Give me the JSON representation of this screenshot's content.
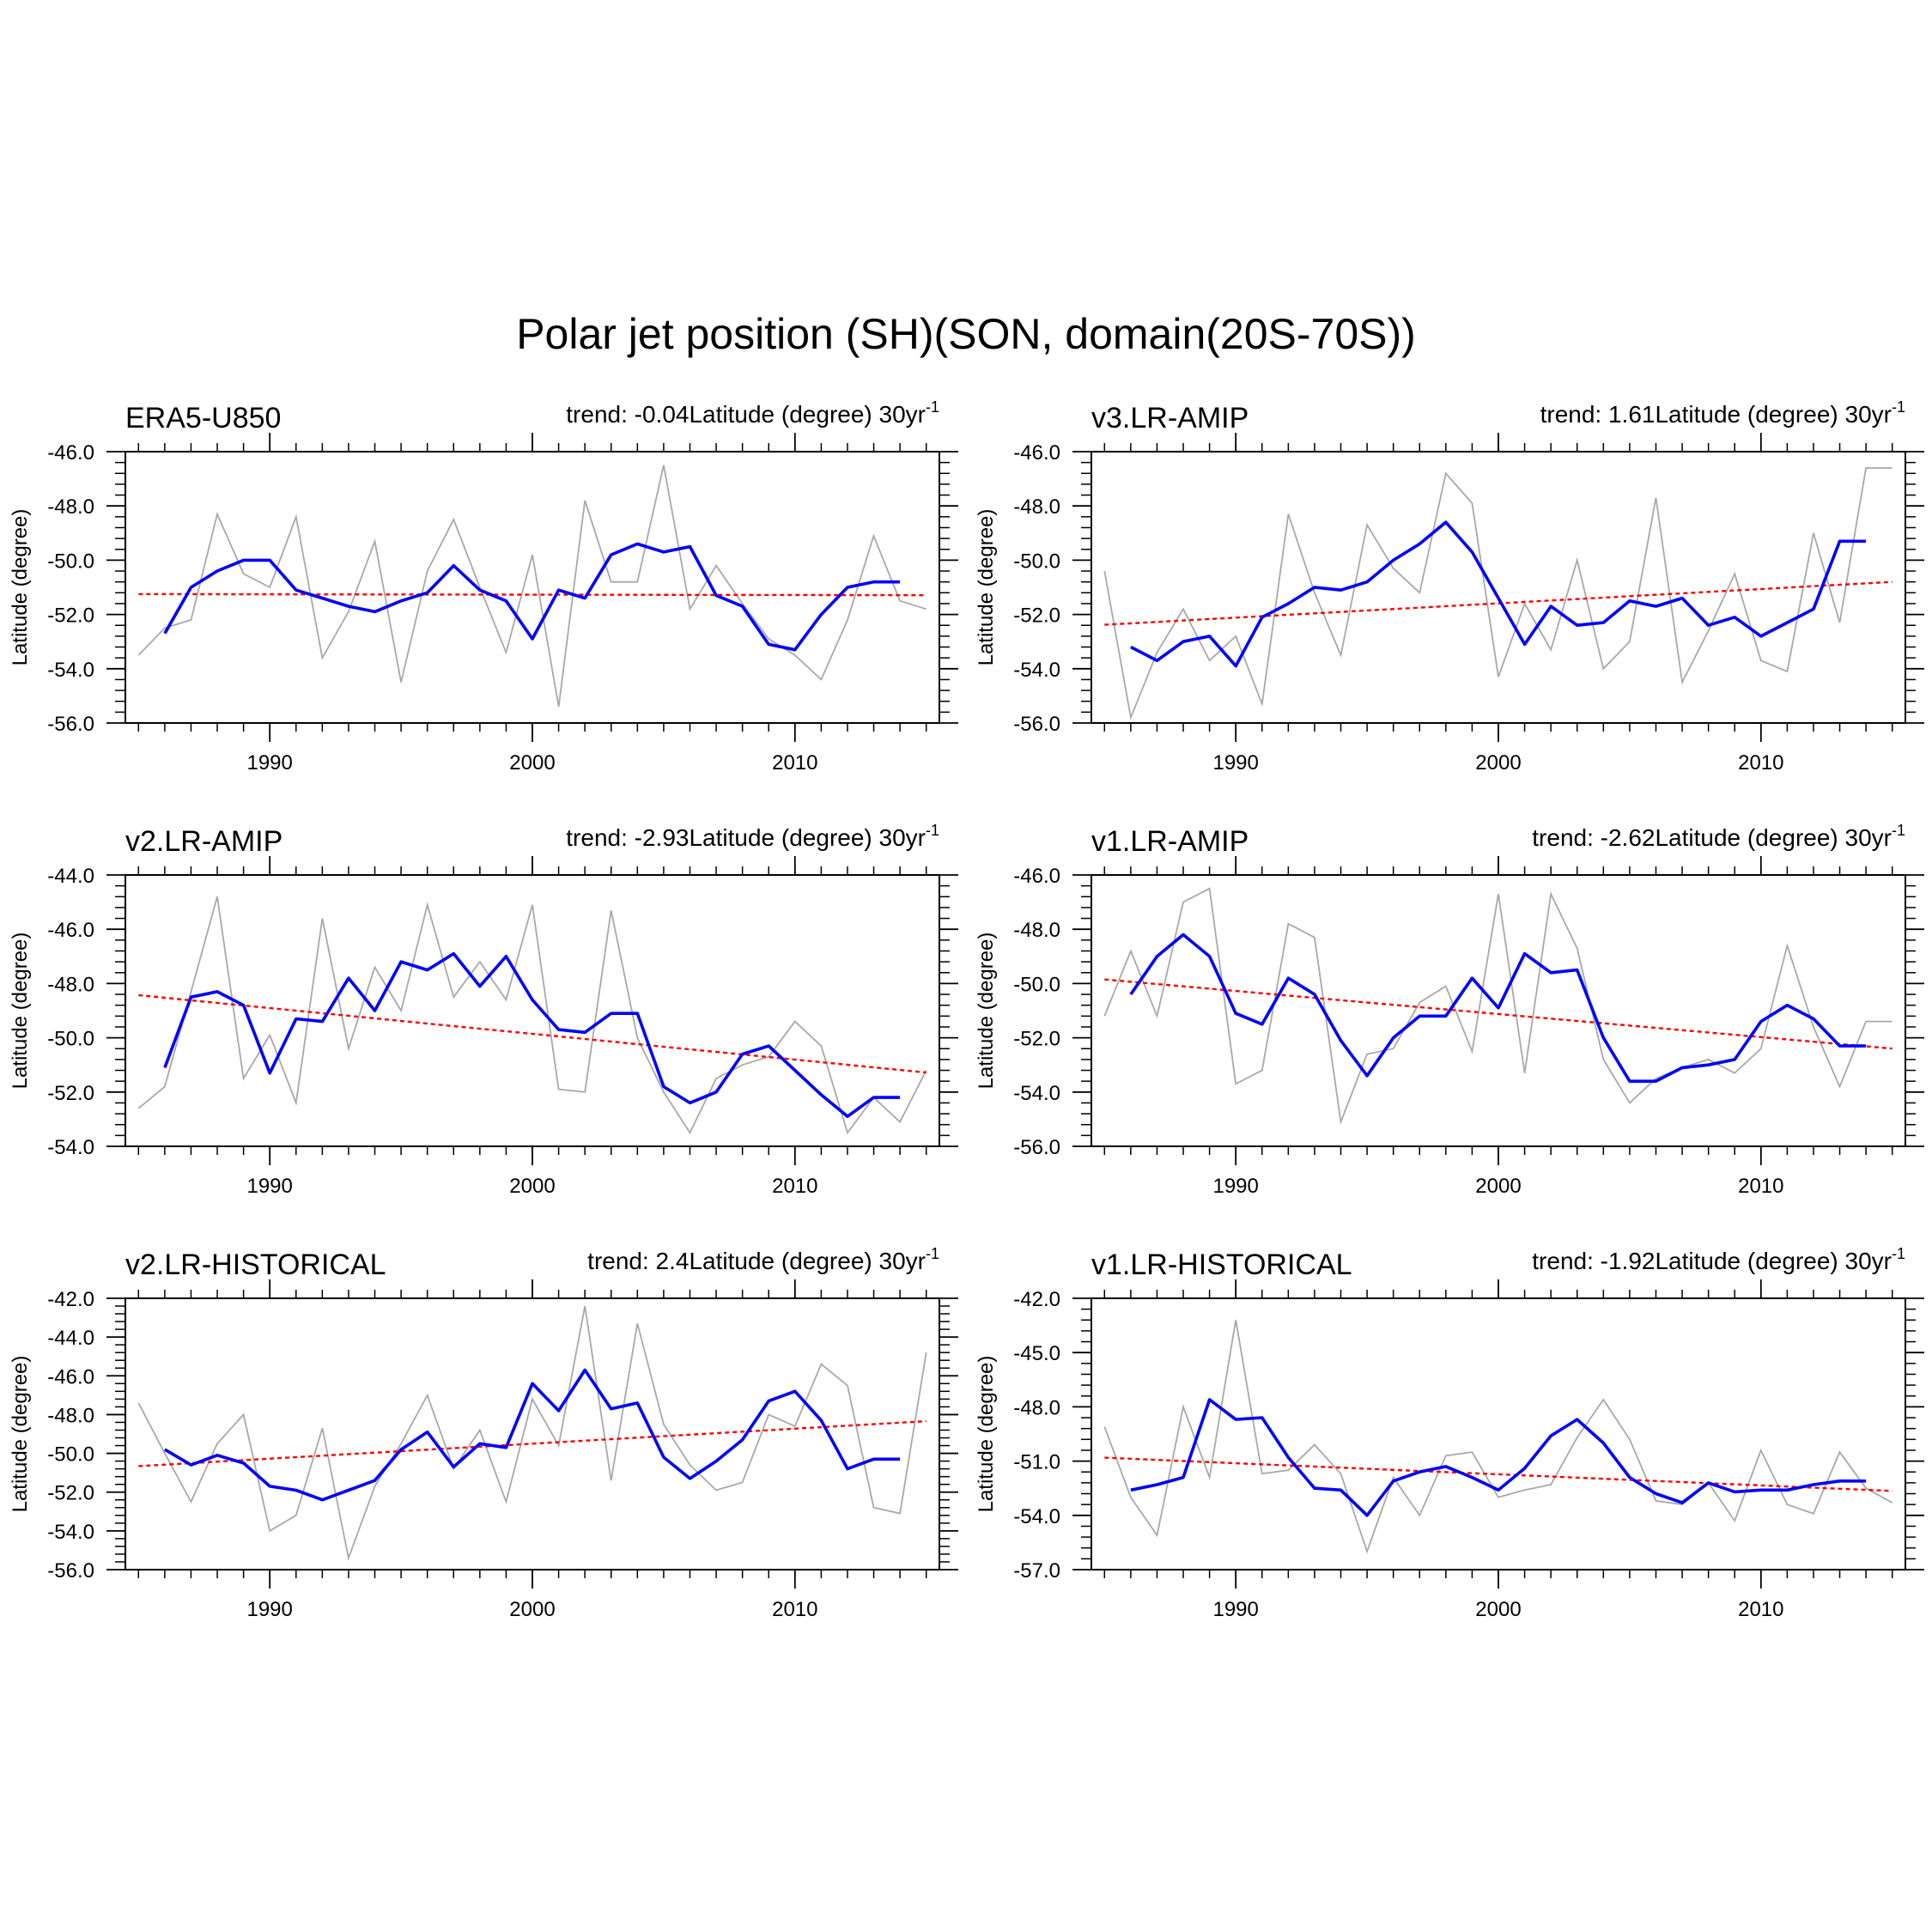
{
  "figure": {
    "title": "Polar jet position (SH)(SON, domain(20S-70S))"
  },
  "chart_data": [
    {
      "type": "line",
      "title": "ERA5-U850",
      "trend_text": "trend: -0.04Latitude (degree) 30yr",
      "trend_superscript": "-1",
      "ylabel": "Latitude (degree)",
      "xlim": [
        1984.5,
        2015.5
      ],
      "ylim": [
        -56.0,
        -46.0
      ],
      "yticks": [
        -56.0,
        -54.0,
        -52.0,
        -50.0,
        -48.0,
        -46.0
      ],
      "ytick_labels": [
        "-56.0",
        "-54.0",
        "-52.0",
        "-50.0",
        "-48.0",
        "-46.0"
      ],
      "xticks": [
        1990,
        2000,
        2010
      ],
      "xtick_labels": [
        "1990",
        "2000",
        "2010"
      ],
      "x_raw": [
        1985,
        1986,
        1987,
        1988,
        1989,
        1990,
        1991,
        1992,
        1993,
        1994,
        1995,
        1996,
        1997,
        1998,
        1999,
        2000,
        2001,
        2002,
        2003,
        2004,
        2005,
        2006,
        2007,
        2008,
        2009,
        2010,
        2011,
        2012,
        2013,
        2014,
        2015
      ],
      "raw": [
        -53.5,
        -52.5,
        -52.2,
        -48.3,
        -50.5,
        -51.0,
        -48.4,
        -53.6,
        -51.9,
        -49.3,
        -54.5,
        -50.4,
        -48.5,
        -51.0,
        -53.4,
        -49.8,
        -55.4,
        -47.8,
        -50.8,
        -50.8,
        -46.5,
        -51.8,
        -50.2,
        -51.6,
        -52.9,
        -53.5,
        -54.4,
        -52.2,
        -49.1,
        -51.5,
        -51.8
      ],
      "x_smooth": [
        1986,
        1987,
        1988,
        1989,
        1990,
        1991,
        1992,
        1993,
        1994,
        1995,
        1996,
        1997,
        1998,
        1999,
        2000,
        2001,
        2002,
        2003,
        2004,
        2005,
        2006,
        2007,
        2008,
        2009,
        2010,
        2011,
        2012,
        2013,
        2014
      ],
      "smooth": [
        -52.7,
        -51.0,
        -50.4,
        -50.0,
        -50.0,
        -51.1,
        -51.4,
        -51.7,
        -51.9,
        -51.5,
        -51.2,
        -50.2,
        -51.1,
        -51.5,
        -52.9,
        -51.1,
        -51.4,
        -49.8,
        -49.4,
        -49.7,
        -49.5,
        -51.3,
        -51.7,
        -53.1,
        -53.3,
        -52.0,
        -51.0,
        -50.8,
        -50.8
      ],
      "trend_line": [
        -51.25,
        -51.29
      ]
    },
    {
      "type": "line",
      "title": "v3.LR-AMIP",
      "trend_text": "trend: 1.61Latitude (degree) 30yr",
      "trend_superscript": "-1",
      "ylabel": "Latitude (degree)",
      "xlim": [
        1984.5,
        2015.5
      ],
      "ylim": [
        -56.0,
        -46.0
      ],
      "yticks": [
        -56.0,
        -54.0,
        -52.0,
        -50.0,
        -48.0,
        -46.0
      ],
      "ytick_labels": [
        "-56.0",
        "-54.0",
        "-52.0",
        "-50.0",
        "-48.0",
        "-46.0"
      ],
      "xticks": [
        1990,
        2000,
        2010
      ],
      "xtick_labels": [
        "1990",
        "2000",
        "2010"
      ],
      "x_raw": [
        1985,
        1986,
        1987,
        1988,
        1989,
        1990,
        1991,
        1992,
        1993,
        1994,
        1995,
        1996,
        1997,
        1998,
        1999,
        2000,
        2001,
        2002,
        2003,
        2004,
        2005,
        2006,
        2007,
        2008,
        2009,
        2010,
        2011,
        2012,
        2013,
        2014,
        2015
      ],
      "raw": [
        -50.4,
        -55.8,
        -53.4,
        -51.8,
        -53.7,
        -52.8,
        -55.3,
        -48.3,
        -51.2,
        -53.5,
        -48.7,
        -50.3,
        -51.2,
        -46.8,
        -47.9,
        -54.3,
        -51.6,
        -53.3,
        -50.0,
        -54.0,
        -53.0,
        -47.7,
        -54.5,
        -52.6,
        -50.5,
        -53.7,
        -54.1,
        -49.0,
        -52.3,
        -46.6,
        -46.6
      ],
      "x_smooth": [
        1986,
        1987,
        1988,
        1989,
        1990,
        1991,
        1992,
        1993,
        1994,
        1995,
        1996,
        1997,
        1998,
        1999,
        2000,
        2001,
        2002,
        2003,
        2004,
        2005,
        2006,
        2007,
        2008,
        2009,
        2010,
        2011,
        2012,
        2013,
        2014
      ],
      "smooth": [
        -53.2,
        -53.7,
        -53.0,
        -52.8,
        -53.9,
        -52.1,
        -51.6,
        -51.0,
        -51.1,
        -50.8,
        -50.0,
        -49.4,
        -48.6,
        -49.7,
        -51.4,
        -53.1,
        -51.7,
        -52.4,
        -52.3,
        -51.5,
        -51.7,
        -51.4,
        -52.4,
        -52.1,
        -52.8,
        -52.3,
        -51.8,
        -49.3,
        -49.3
      ],
      "trend_line": [
        -52.38,
        -50.8
      ]
    },
    {
      "type": "line",
      "title": "v2.LR-AMIP",
      "trend_text": "trend: -2.93Latitude (degree) 30yr",
      "trend_superscript": "-1",
      "ylabel": "Latitude (degree)",
      "xlim": [
        1984.5,
        2015.5
      ],
      "ylim": [
        -54.0,
        -44.0
      ],
      "yticks": [
        -54.0,
        -52.0,
        -50.0,
        -48.0,
        -46.0,
        -44.0
      ],
      "ytick_labels": [
        "-54.0",
        "-52.0",
        "-50.0",
        "-48.0",
        "-46.0",
        "-44.0"
      ],
      "xticks": [
        1990,
        2000,
        2010
      ],
      "xtick_labels": [
        "1990",
        "2000",
        "2010"
      ],
      "x_raw": [
        1985,
        1986,
        1987,
        1988,
        1989,
        1990,
        1991,
        1992,
        1993,
        1994,
        1995,
        1996,
        1997,
        1998,
        1999,
        2000,
        2001,
        2002,
        2003,
        2004,
        2005,
        2006,
        2007,
        2008,
        2009,
        2010,
        2011,
        2012,
        2013,
        2014,
        2015
      ],
      "raw": [
        -52.6,
        -51.8,
        -48.3,
        -44.8,
        -51.5,
        -49.9,
        -52.4,
        -45.6,
        -50.4,
        -47.4,
        -49.0,
        -45.1,
        -48.5,
        -47.2,
        -48.6,
        -45.1,
        -51.9,
        -52.0,
        -45.3,
        -50.0,
        -52.0,
        -53.5,
        -51.5,
        -51.0,
        -50.7,
        -49.4,
        -50.3,
        -53.5,
        -52.2,
        -53.1,
        -51.2
      ],
      "x_smooth": [
        1986,
        1987,
        1988,
        1989,
        1990,
        1991,
        1992,
        1993,
        1994,
        1995,
        1996,
        1997,
        1998,
        1999,
        2000,
        2001,
        2002,
        2003,
        2004,
        2005,
        2006,
        2007,
        2008,
        2009,
        2010,
        2011,
        2012,
        2013,
        2014
      ],
      "smooth": [
        -51.1,
        -48.5,
        -48.3,
        -48.8,
        -51.3,
        -49.3,
        -49.4,
        -47.8,
        -49.0,
        -47.2,
        -47.5,
        -46.9,
        -48.1,
        -47.0,
        -48.6,
        -49.7,
        -49.8,
        -49.1,
        -49.1,
        -51.8,
        -52.4,
        -52.0,
        -50.6,
        -50.3,
        -51.2,
        -52.1,
        -52.9,
        -52.2,
        -52.2
      ],
      "trend_line": [
        -48.43,
        -51.28
      ]
    },
    {
      "type": "line",
      "title": "v1.LR-AMIP",
      "trend_text": "trend: -2.62Latitude (degree) 30yr",
      "trend_superscript": "-1",
      "ylabel": "Latitude (degree)",
      "xlim": [
        1984.5,
        2015.5
      ],
      "ylim": [
        -56.0,
        -46.0
      ],
      "yticks": [
        -56.0,
        -54.0,
        -52.0,
        -50.0,
        -48.0,
        -46.0
      ],
      "ytick_labels": [
        "-56.0",
        "-54.0",
        "-52.0",
        "-50.0",
        "-48.0",
        "-46.0"
      ],
      "xticks": [
        1990,
        2000,
        2010
      ],
      "xtick_labels": [
        "1990",
        "2000",
        "2010"
      ],
      "x_raw": [
        1985,
        1986,
        1987,
        1988,
        1989,
        1990,
        1991,
        1992,
        1993,
        1994,
        1995,
        1996,
        1997,
        1998,
        1999,
        2000,
        2001,
        2002,
        2003,
        2004,
        2005,
        2006,
        2007,
        2008,
        2009,
        2010,
        2011,
        2012,
        2013,
        2014,
        2015
      ],
      "raw": [
        -51.2,
        -48.8,
        -51.2,
        -47.0,
        -46.5,
        -53.7,
        -53.2,
        -47.8,
        -48.3,
        -55.1,
        -52.6,
        -52.4,
        -50.7,
        -50.1,
        -52.5,
        -46.7,
        -53.3,
        -46.7,
        -48.7,
        -52.8,
        -54.4,
        -53.5,
        -53.1,
        -52.8,
        -53.3,
        -52.4,
        -48.6,
        -51.6,
        -53.8,
        -51.4,
        -51.4
      ],
      "x_smooth": [
        1986,
        1987,
        1988,
        1989,
        1990,
        1991,
        1992,
        1993,
        1994,
        1995,
        1996,
        1997,
        1998,
        1999,
        2000,
        2001,
        2002,
        2003,
        2004,
        2005,
        2006,
        2007,
        2008,
        2009,
        2010,
        2011,
        2012,
        2013,
        2014
      ],
      "smooth": [
        -50.4,
        -49.0,
        -48.2,
        -49.0,
        -51.1,
        -51.5,
        -49.8,
        -50.4,
        -52.1,
        -53.4,
        -52.0,
        -51.2,
        -51.2,
        -49.8,
        -50.9,
        -48.9,
        -49.6,
        -49.5,
        -52.0,
        -53.6,
        -53.6,
        -53.1,
        -53.0,
        -52.8,
        -51.4,
        -50.8,
        -51.3,
        -52.3,
        -52.3
      ],
      "trend_line": [
        -49.85,
        -52.4
      ]
    },
    {
      "type": "line",
      "title": "v2.LR-HISTORICAL",
      "trend_text": "trend: 2.4Latitude (degree) 30yr",
      "trend_superscript": "-1",
      "ylabel": "Latitude (degree)",
      "xlim": [
        1984.5,
        2015.5
      ],
      "ylim": [
        -56.0,
        -42.0
      ],
      "yticks": [
        -56.0,
        -54.0,
        -52.0,
        -50.0,
        -48.0,
        -46.0,
        -44.0,
        -42.0
      ],
      "ytick_labels": [
        "-56.0",
        "-54.0",
        "-52.0",
        "-50.0",
        "-48.0",
        "-46.0",
        "-44.0",
        "-42.0"
      ],
      "xticks": [
        1990,
        2000,
        2010
      ],
      "xtick_labels": [
        "1990",
        "2000",
        "2010"
      ],
      "x_raw": [
        1985,
        1986,
        1987,
        1988,
        1989,
        1990,
        1991,
        1992,
        1993,
        1994,
        1995,
        1996,
        1997,
        1998,
        1999,
        2000,
        2001,
        2002,
        2003,
        2004,
        2005,
        2006,
        2007,
        2008,
        2009,
        2010,
        2011,
        2012,
        2013,
        2014,
        2015
      ],
      "raw": [
        -47.4,
        -50.0,
        -52.5,
        -49.5,
        -48.0,
        -54.0,
        -53.2,
        -48.7,
        -55.4,
        -51.7,
        -49.5,
        -47.0,
        -50.8,
        -48.8,
        -52.5,
        -47.2,
        -49.6,
        -42.4,
        -51.4,
        -43.3,
        -48.5,
        -50.6,
        -51.9,
        -51.5,
        -48.0,
        -48.6,
        -45.4,
        -46.5,
        -52.8,
        -53.1,
        -44.8
      ],
      "x_smooth": [
        1986,
        1987,
        1988,
        1989,
        1990,
        1991,
        1992,
        1993,
        1994,
        1995,
        1996,
        1997,
        1998,
        1999,
        2000,
        2001,
        2002,
        2003,
        2004,
        2005,
        2006,
        2007,
        2008,
        2009,
        2010,
        2011,
        2012,
        2013,
        2014
      ],
      "smooth": [
        -49.8,
        -50.6,
        -50.1,
        -50.5,
        -51.7,
        -51.9,
        -52.4,
        -51.9,
        -51.4,
        -49.8,
        -48.9,
        -50.7,
        -49.5,
        -49.7,
        -46.4,
        -47.8,
        -45.7,
        -47.7,
        -47.4,
        -50.2,
        -51.3,
        -50.4,
        -49.3,
        -47.3,
        -46.8,
        -48.3,
        -50.8,
        -50.3,
        -50.3
      ],
      "trend_line": [
        -50.66,
        -48.34
      ]
    },
    {
      "type": "line",
      "title": "v1.LR-HISTORICAL",
      "trend_text": "trend: -1.92Latitude (degree) 30yr",
      "trend_superscript": "-1",
      "ylabel": "Latitude (degree)",
      "xlim": [
        1984.5,
        2015.5
      ],
      "ylim": [
        -57.0,
        -42.0
      ],
      "yticks": [
        -57.0,
        -54.0,
        -51.0,
        -48.0,
        -45.0,
        -42.0
      ],
      "ytick_labels": [
        "-57.0",
        "-54.0",
        "-51.0",
        "-48.0",
        "-45.0",
        "-42.0"
      ],
      "xticks": [
        1990,
        2000,
        2010
      ],
      "xtick_labels": [
        "1990",
        "2000",
        "2010"
      ],
      "x_raw": [
        1985,
        1986,
        1987,
        1988,
        1989,
        1990,
        1991,
        1992,
        1993,
        1994,
        1995,
        1996,
        1997,
        1998,
        1999,
        2000,
        2001,
        2002,
        2003,
        2004,
        2005,
        2006,
        2007,
        2008,
        2009,
        2010,
        2011,
        2012,
        2013,
        2014,
        2015
      ],
      "raw": [
        -49.1,
        -53.0,
        -55.1,
        -48.0,
        -51.9,
        -43.2,
        -51.7,
        -51.5,
        -50.1,
        -51.7,
        -56.0,
        -51.9,
        -54.0,
        -50.7,
        -50.5,
        -53.0,
        -52.6,
        -52.3,
        -49.7,
        -47.6,
        -49.8,
        -53.2,
        -53.4,
        -52.2,
        -54.3,
        -50.4,
        -53.4,
        -53.9,
        -50.5,
        -52.5,
        -53.3
      ],
      "x_smooth": [
        1986,
        1987,
        1988,
        1989,
        1990,
        1991,
        1992,
        1993,
        1994,
        1995,
        1996,
        1997,
        1998,
        1999,
        2000,
        2001,
        2002,
        2003,
        2004,
        2005,
        2006,
        2007,
        2008,
        2009,
        2010,
        2011,
        2012,
        2013,
        2014
      ],
      "smooth": [
        -52.6,
        -52.3,
        -51.9,
        -47.6,
        -48.7,
        -48.6,
        -50.8,
        -52.5,
        -52.6,
        -54.0,
        -52.1,
        -51.6,
        -51.3,
        -51.9,
        -52.6,
        -51.4,
        -49.6,
        -48.7,
        -50.0,
        -51.9,
        -52.8,
        -53.3,
        -52.2,
        -52.7,
        -52.6,
        -52.6,
        -52.3,
        -52.1,
        -52.1
      ],
      "trend_line": [
        -50.81,
        -52.65
      ]
    }
  ]
}
